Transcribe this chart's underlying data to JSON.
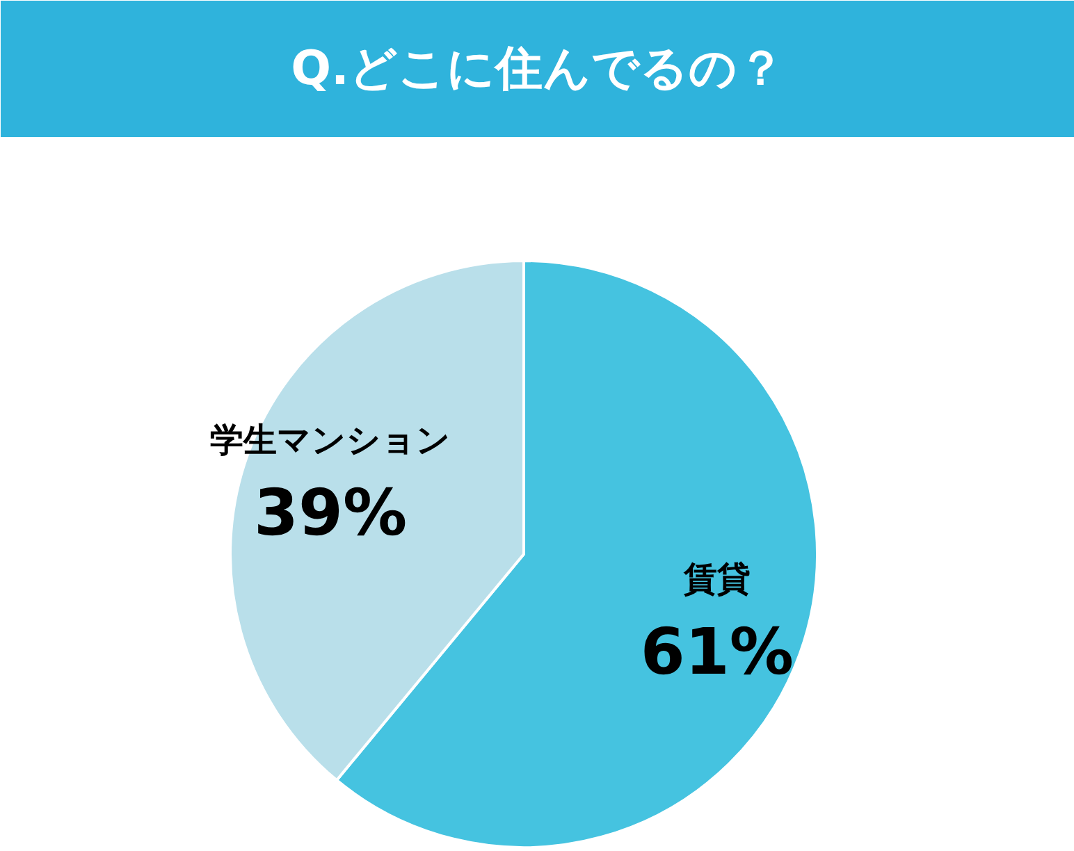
{
  "chart_data": {
    "type": "pie",
    "title": "Q.どこに住んでるの？",
    "categories": [
      "賃貸",
      "学生マンション"
    ],
    "values": [
      61,
      39
    ],
    "colors": [
      "#45c3e0",
      "#b9dfea"
    ],
    "value_labels": [
      "61%",
      "39%"
    ]
  }
}
